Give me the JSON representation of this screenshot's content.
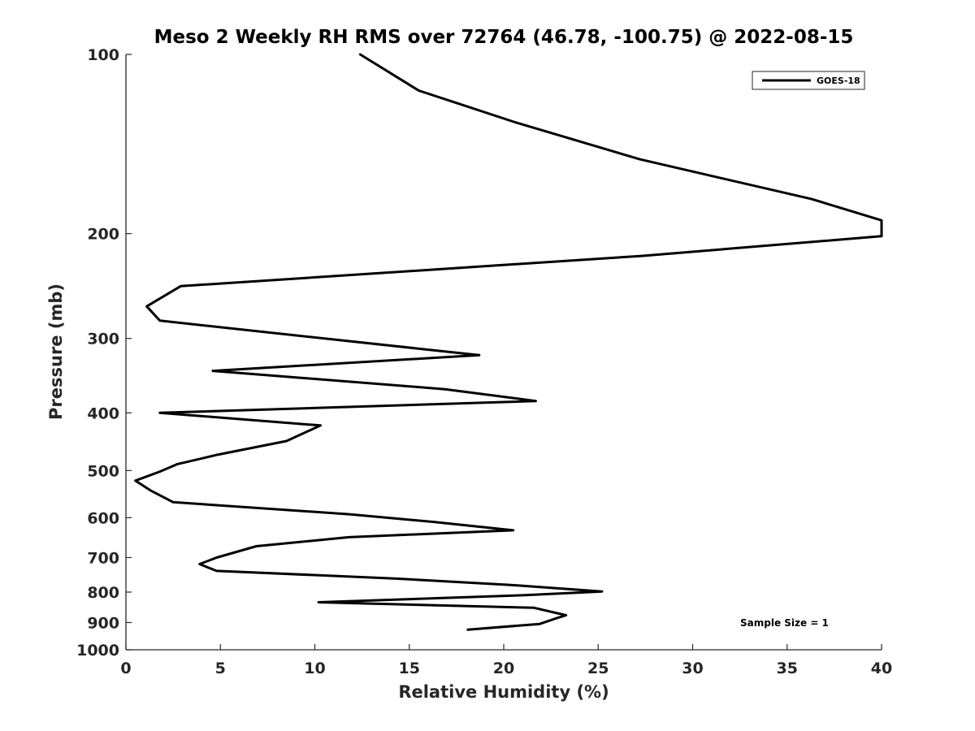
{
  "chart_data": {
    "type": "line",
    "title": "Meso 2 Weekly RH RMS over 72764 (46.78, -100.75) @ 2022-08-15",
    "xlabel": "Relative Humidity (%)",
    "ylabel": "Pressure (mb)",
    "xlim": [
      0,
      40
    ],
    "ylim": [
      100,
      1000
    ],
    "yscale": "log",
    "y_reversed": true,
    "xticks": [
      0,
      5,
      10,
      15,
      20,
      25,
      30,
      35,
      40
    ],
    "yticks": [
      100,
      200,
      300,
      400,
      500,
      600,
      700,
      800,
      900,
      1000
    ],
    "legend_position": "top-right",
    "annotation": "Sample Size = 1",
    "series": [
      {
        "name": "GOES-18",
        "color": "#000000",
        "x": [
          12.4,
          15.5,
          20.6,
          27.2,
          36.3,
          40.0,
          40.0,
          27.3,
          2.9,
          1.1,
          1.8,
          18.7,
          4.6,
          16.9,
          21.7,
          1.8,
          10.3,
          8.5,
          4.9,
          2.7,
          1.8,
          0.5,
          1.3,
          2.5,
          11.8,
          16.3,
          20.5,
          11.8,
          6.9,
          4.8,
          3.9,
          4.8,
          14.2,
          20.3,
          25.2,
          21.0,
          10.2,
          21.6,
          23.3,
          22.8,
          21.9,
          18.1
        ],
        "y": [
          100,
          115,
          130,
          150,
          175,
          190,
          202,
          218,
          245,
          265,
          280,
          320,
          340,
          365,
          382,
          400,
          420,
          446,
          470,
          488,
          502,
          520,
          540,
          565,
          592,
          610,
          630,
          647,
          670,
          700,
          718,
          737,
          759,
          778,
          798,
          810,
          832,
          850,
          875,
          885,
          905,
          925
        ]
      }
    ]
  }
}
